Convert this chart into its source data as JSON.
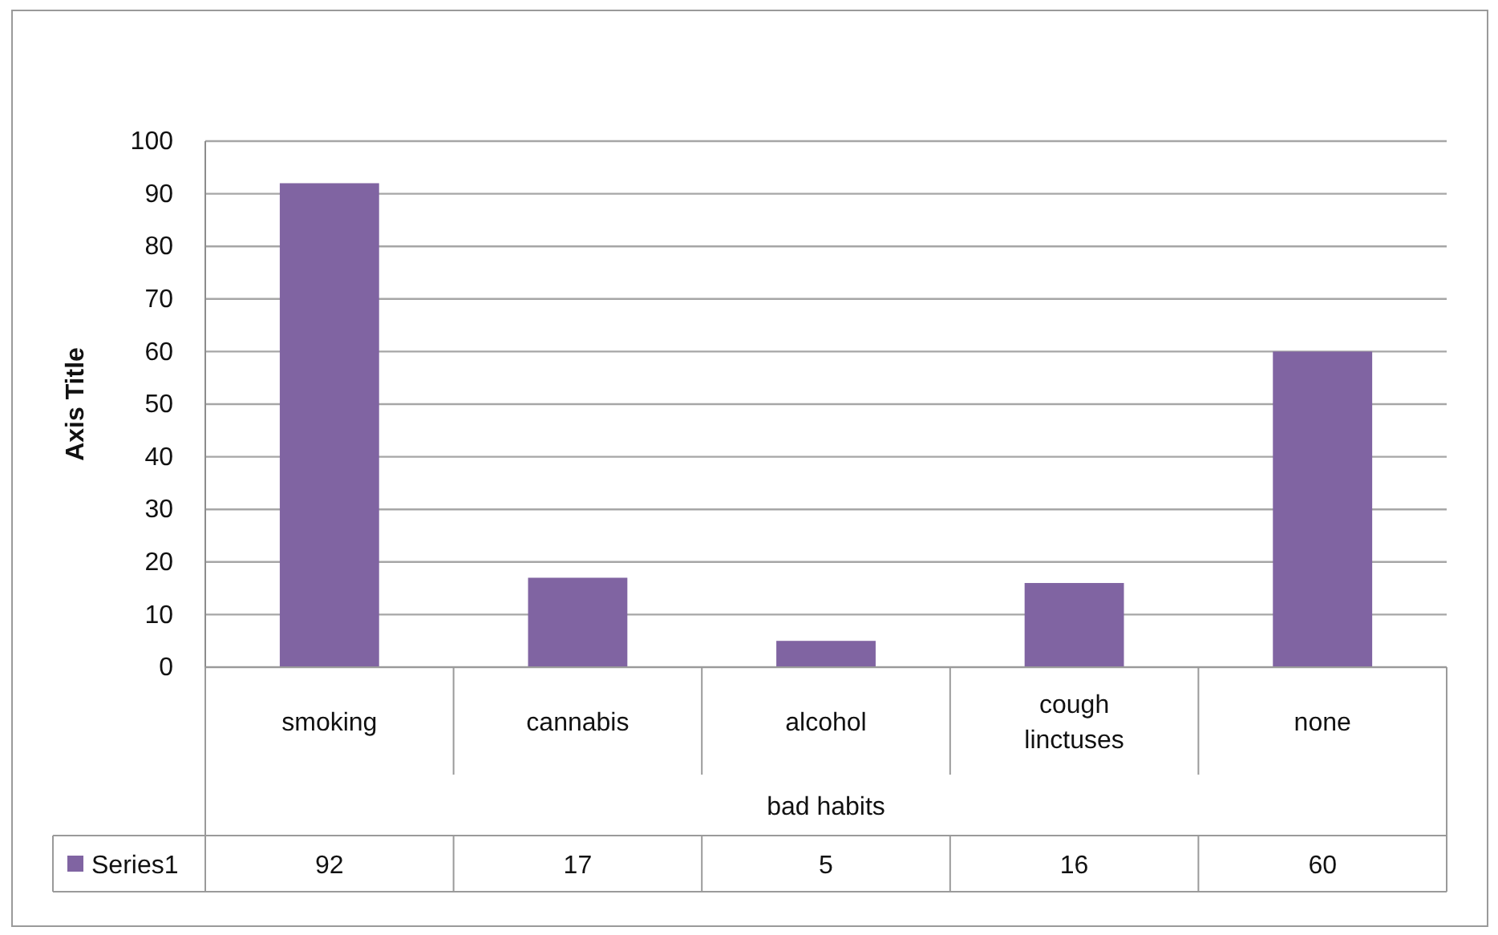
{
  "chart_data": {
    "type": "bar",
    "xlabel": "bad habits",
    "ylabel": "Axis Title",
    "categories": [
      "smoking",
      "cannabis",
      "alcohol",
      "cough linctuses",
      "none"
    ],
    "series": [
      {
        "name": "Series1",
        "color": "#8064a2",
        "values": [
          92,
          17,
          5,
          16,
          60
        ]
      }
    ],
    "ylim": [
      0,
      100
    ],
    "yticks": [
      0,
      10,
      20,
      30,
      40,
      50,
      60,
      70,
      80,
      90,
      100
    ],
    "grid": "y",
    "data_labels": true,
    "legend": "bottom"
  }
}
